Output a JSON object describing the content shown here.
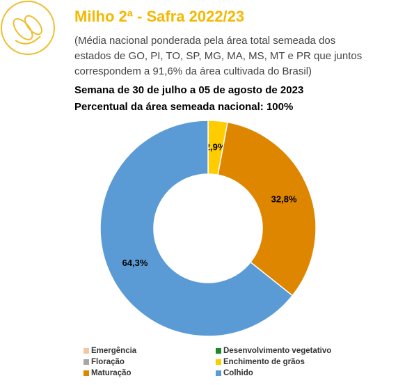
{
  "chart_data": {
    "type": "donut",
    "title": "Milho 2ª - Safra 2022/23",
    "subtitle": [
      "(Média nacional ponderada pela área total semeada dos",
      "estados de GO, PI, TO, SP, MG, MA, MS, MT e PR que juntos",
      "correspondem a 91,6% da área cultivada do Brasil)"
    ],
    "week": "Semana de 30 de julho a 05 de agosto de 2023",
    "area_note": "Percentual da área semeada nacional: 100%",
    "categories": [
      "Emergência",
      "Desenvolvimento vegetativo",
      "Floração",
      "Enchimento de grãos",
      "Maturação",
      "Colhido"
    ],
    "values": [
      0,
      0,
      0,
      2.9,
      32.8,
      64.3
    ],
    "value_labels": [
      null,
      null,
      null,
      "2,9%",
      "32,8%",
      "64,3%"
    ],
    "colors": [
      "#f4c7a4",
      "#1a8a2a",
      "#a6a6a6",
      "#ffcc00",
      "#df8600",
      "#5b9bd5"
    ]
  }
}
